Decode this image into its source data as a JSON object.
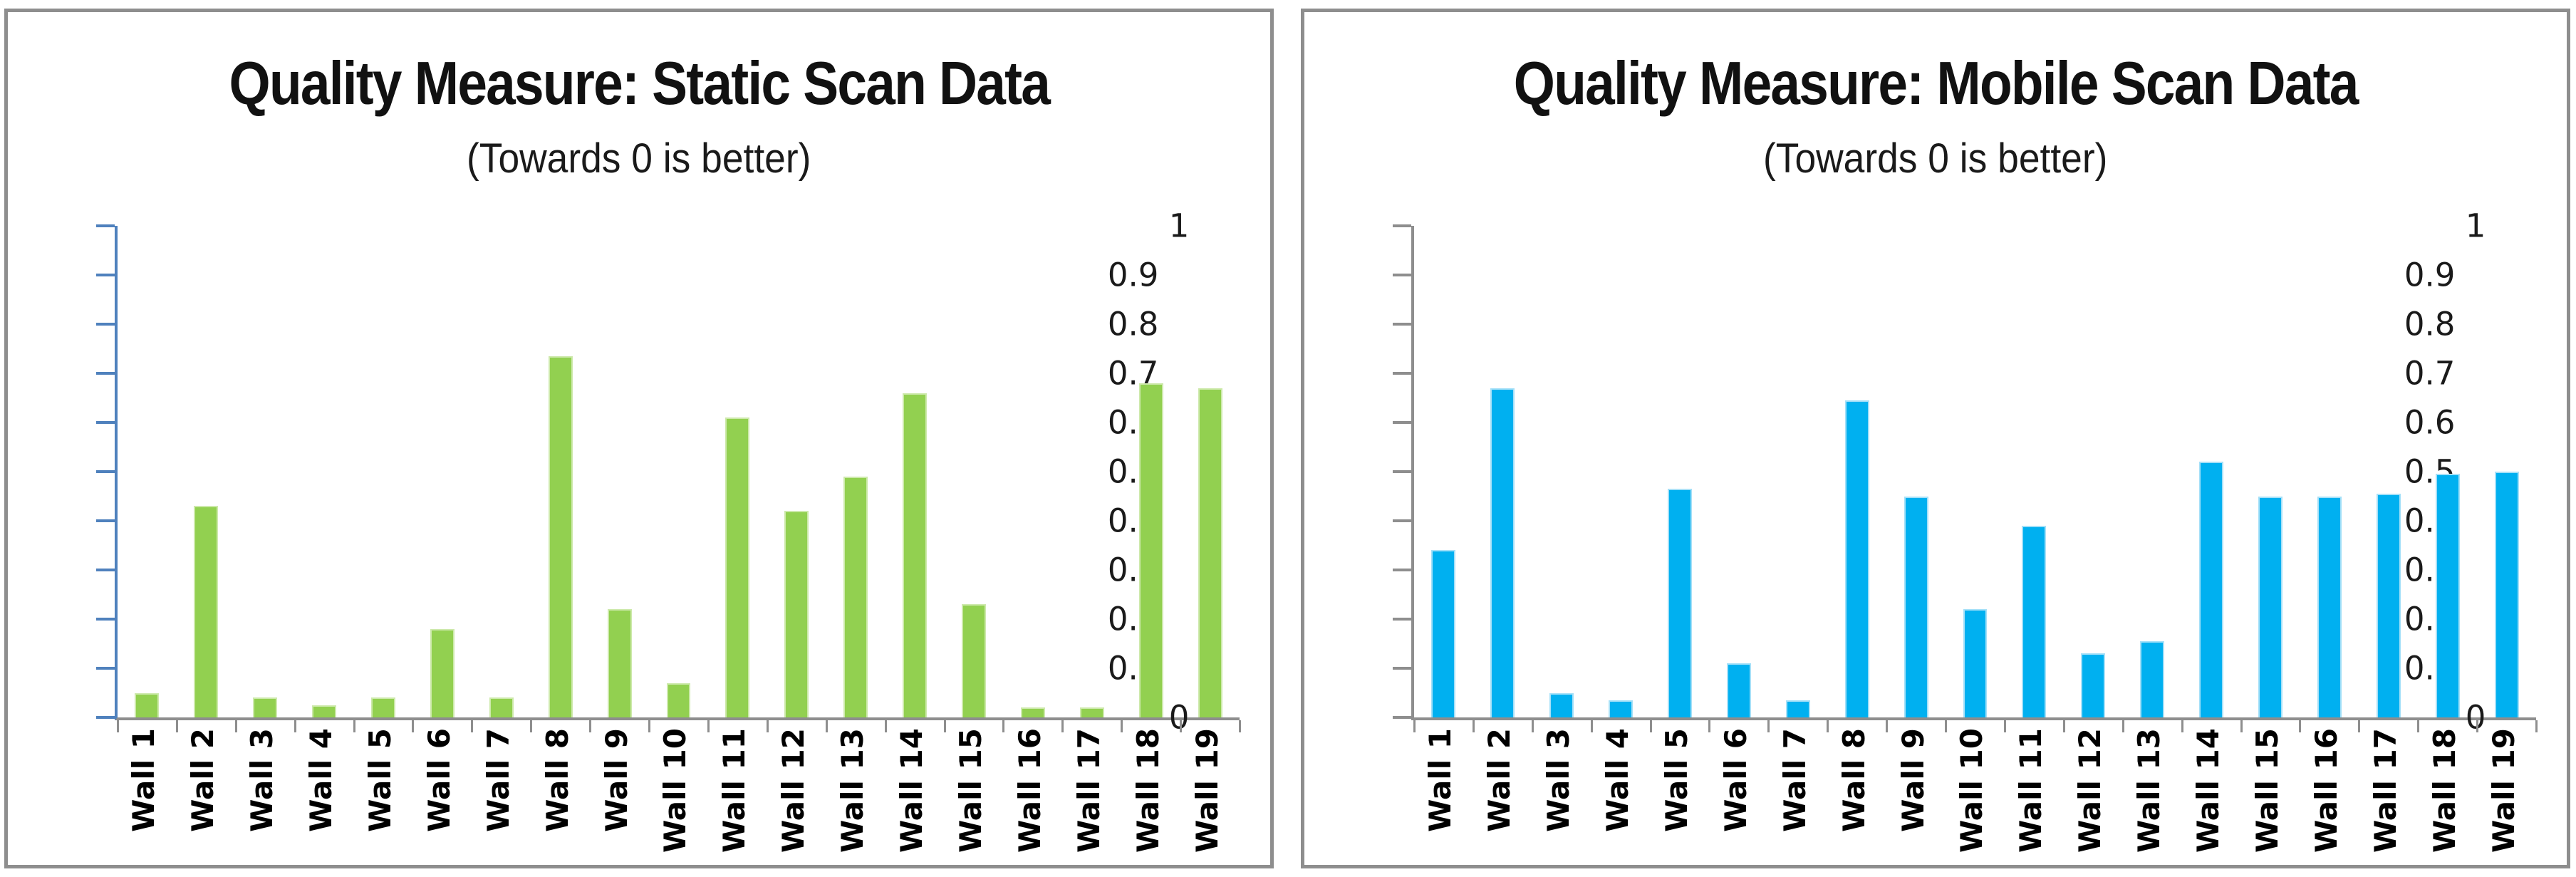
{
  "accent_colors": {
    "static_bar_green": "#92D050",
    "static_bar_edge": "#cde9ab",
    "static_axis_blue": "#4F81BD",
    "mobile_bar_blue": "#00B0F0",
    "mobile_bar_edge": "#a5e0f8",
    "mobile_axis_gray": "#8e8e8e",
    "frame_gray": "#8e8e8e"
  },
  "chart_data": [
    {
      "type": "bar",
      "title": "Quality Measure: Static Scan Data",
      "subtitle": "(Towards 0 is better)",
      "categories": [
        "Wall 1",
        "Wall 2",
        "Wall 3",
        "Wall 4",
        "Wall 5",
        "Wall 6",
        "Wall 7",
        "Wall 8",
        "Wall 9",
        "Wall 10",
        "Wall 11",
        "Wall 12",
        "Wall 13",
        "Wall 14",
        "Wall 15",
        "Wall 16",
        "Wall 17",
        "Wall 18",
        "Wall 19"
      ],
      "values": [
        0.05,
        0.43,
        0.04,
        0.025,
        0.04,
        0.18,
        0.04,
        0.735,
        0.22,
        0.07,
        0.61,
        0.42,
        0.49,
        0.66,
        0.23,
        0.02,
        0.02,
        0.68,
        0.67
      ],
      "ylim": [
        0,
        1
      ],
      "ytick_labels": [
        "1",
        "0.9",
        "0.8",
        "0.7",
        "0.6",
        "0.5",
        "0.4",
        "0.3",
        "0.2",
        "0.1",
        "0"
      ],
      "ytick_values": [
        1,
        0.9,
        0.8,
        0.7,
        0.6,
        0.5,
        0.4,
        0.3,
        0.2,
        0.1,
        0
      ],
      "grid": false,
      "legend": "none",
      "bar_color": "#92D050",
      "bar_edge": "#cde9ab",
      "axis_color": "#4F81BD"
    },
    {
      "type": "bar",
      "title": "Quality Measure: Mobile Scan Data",
      "subtitle": "(Towards 0 is better)",
      "categories": [
        "Wall 1",
        "Wall 2",
        "Wall 3",
        "Wall 4",
        "Wall 5",
        "Wall 6",
        "Wall 7",
        "Wall 8",
        "Wall 9",
        "Wall 10",
        "Wall 11",
        "Wall 12",
        "Wall 13",
        "Wall 14",
        "Wall 15",
        "Wall 16",
        "Wall 17",
        "Wall 18",
        "Wall 19"
      ],
      "values": [
        0.34,
        0.67,
        0.05,
        0.035,
        0.465,
        0.11,
        0.035,
        0.645,
        0.45,
        0.22,
        0.39,
        0.13,
        0.155,
        0.52,
        0.45,
        0.45,
        0.455,
        0.495,
        0.5
      ],
      "ylim": [
        0,
        1
      ],
      "ytick_labels": [
        "1",
        "0.9",
        "0.8",
        "0.7",
        "0.6",
        "0.5",
        "0.4",
        "0.3",
        "0.2",
        "0.1",
        "0"
      ],
      "ytick_values": [
        1,
        0.9,
        0.8,
        0.7,
        0.6,
        0.5,
        0.4,
        0.3,
        0.2,
        0.1,
        0
      ],
      "grid": false,
      "legend": "none",
      "bar_color": "#00B0F0",
      "bar_edge": "#a5e0f8",
      "axis_color": "#8e8e8e"
    }
  ]
}
